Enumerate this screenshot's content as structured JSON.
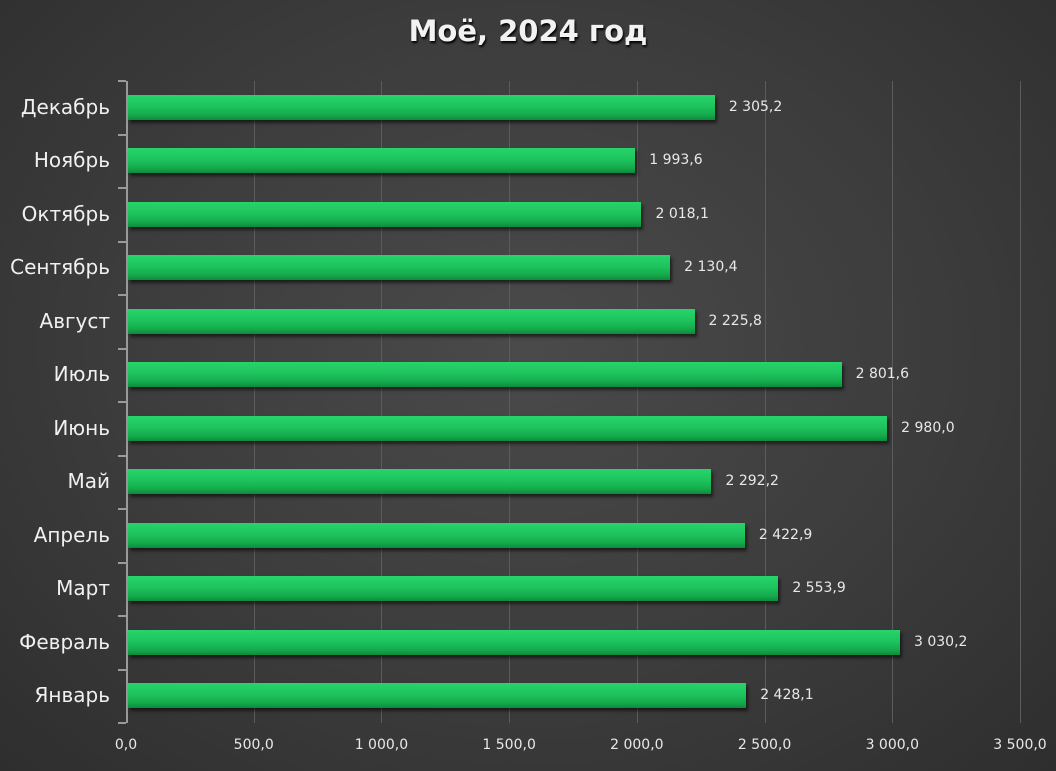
{
  "chart_data": {
    "type": "bar",
    "orientation": "horizontal",
    "title": "Моё, 2024 год",
    "xlabel": "",
    "ylabel": "",
    "categories": [
      "Декабрь",
      "Ноябрь",
      "Октябрь",
      "Сентябрь",
      "Август",
      "Июль",
      "Июнь",
      "Май",
      "Апрель",
      "Март",
      "Февраль",
      "Январь"
    ],
    "values": [
      2305.2,
      1993.6,
      2018.1,
      2130.4,
      2225.8,
      2801.6,
      2980.0,
      2292.2,
      2422.9,
      2553.9,
      3030.2,
      2428.1
    ],
    "value_labels": [
      "2 305,2",
      "1 993,6",
      "2 018,1",
      "2 130,4",
      "2 225,8",
      "2 801,6",
      "2 980,0",
      "2 292,2",
      "2 422,9",
      "2 553,9",
      "3 030,2",
      "2 428,1"
    ],
    "xlim": [
      0,
      3500
    ],
    "x_ticks": [
      "0,0",
      "500,0",
      "1 000,0",
      "1 500,0",
      "2 000,0",
      "2 500,0",
      "3 000,0",
      "3 500,0"
    ],
    "grid": "vertical",
    "legend": "none",
    "bar_color": "#1ec45e",
    "background": "#3c3c3c"
  }
}
